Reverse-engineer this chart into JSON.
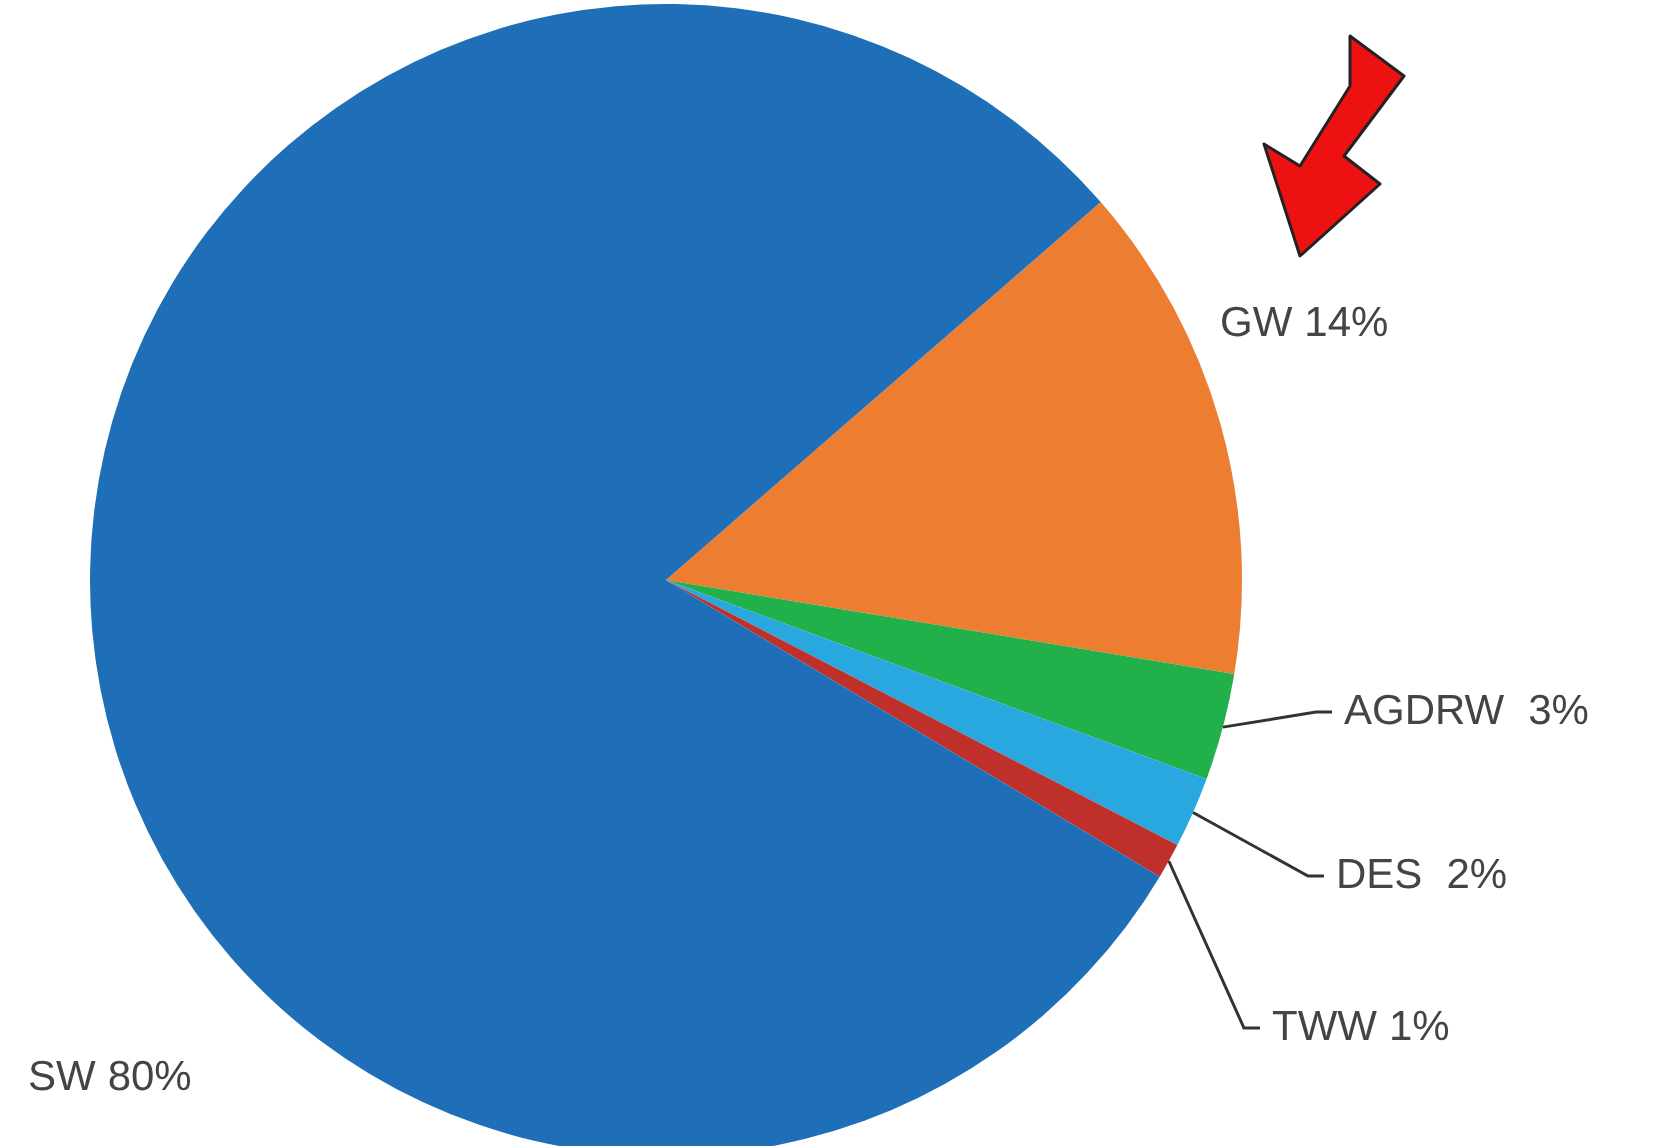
{
  "chart_data": {
    "type": "pie",
    "categories": [
      "GW",
      "AGDRW",
      "DES",
      "TWW",
      "SW"
    ],
    "values": [
      14,
      3,
      2,
      1,
      80
    ],
    "value_labels": [
      "14%",
      "3%",
      "2%",
      "1%",
      "80%"
    ],
    "colors": [
      "#ed7d31",
      "#22b04b",
      "#29a8e0",
      "#c0302b",
      "#1f6fb8"
    ]
  }
}
